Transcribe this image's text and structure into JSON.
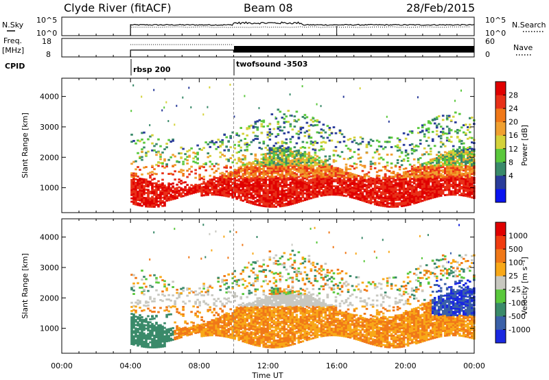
{
  "header": {
    "station": "Clyde River (fitACF)",
    "beam": "Beam 08",
    "date": "28/Feb/2015"
  },
  "top_panels": {
    "nsky_label": "N.Sky",
    "nsky_ticks": [
      "10^5",
      "10^0"
    ],
    "nsearch_label": "N.Search",
    "nsearch_ticks": [
      "10^5",
      "10^0"
    ],
    "freq_label_1": "Freq.",
    "freq_label_2": "[MHz]",
    "freq_ticks": [
      "18",
      "8"
    ],
    "nave_label": "Nave",
    "nave_ticks": [
      "60",
      "0"
    ],
    "cpid_label": "CPID",
    "cpid_segments": [
      {
        "label": "rbsp 200",
        "start_hour": 4
      },
      {
        "label": "twofsound -3503",
        "start_hour": 10
      }
    ]
  },
  "colors": {
    "power_scale": [
      "#0a14f0",
      "#2a3c9a",
      "#3a8a6a",
      "#5ac83c",
      "#d4d23a",
      "#f0a030",
      "#f07818",
      "#e83018",
      "#e00000"
    ],
    "velocity_scale": [
      "#e00000",
      "#f03c10",
      "#f07818",
      "#f8a818",
      "#c8c8c0",
      "#5ac83c",
      "#3a8a6a",
      "#3a60a8",
      "#1a28e0"
    ]
  },
  "chart_data": [
    {
      "type": "heatmap",
      "name": "power",
      "ylabel": "Slant Range [km]",
      "y_ticks": [
        1000,
        2000,
        3000,
        4000
      ],
      "ylim": [
        180,
        4600
      ],
      "x_ticks": [
        "00:00",
        "04:00",
        "08:00",
        "12:00",
        "16:00",
        "20:00",
        "00:00"
      ],
      "xlim_hours": [
        0,
        24
      ],
      "colorbar_label": "Power [dB]",
      "colorbar_ticks": [
        "28",
        "24",
        "20",
        "16",
        "12",
        "8",
        "4"
      ],
      "colorbar_range": [
        0,
        32
      ]
    },
    {
      "type": "heatmap",
      "name": "velocity",
      "ylabel": "Slant Range [km]",
      "y_ticks": [
        1000,
        2000,
        3000,
        4000
      ],
      "ylim": [
        180,
        4600
      ],
      "x_ticks": [
        "00:00",
        "04:00",
        "08:00",
        "12:00",
        "16:00",
        "20:00",
        "00:00"
      ],
      "xlim_hours": [
        0,
        24
      ],
      "xlabel": "Time UT",
      "colorbar_label": "Velocity [m s⁻¹]",
      "colorbar_ticks": [
        "1000",
        "500",
        "100",
        "25",
        "-25",
        "-100",
        "-500",
        "-1000"
      ]
    }
  ]
}
